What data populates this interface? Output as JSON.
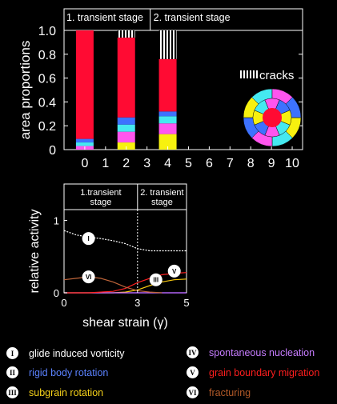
{
  "chart_data": [
    {
      "type": "bar",
      "title": "",
      "stage_labels": [
        "1. transient stage",
        "2. transient stage"
      ],
      "xlabel": "",
      "ylabel": "area proportions",
      "x_ticks": [
        0,
        1,
        2,
        3,
        4,
        5,
        6,
        7,
        8,
        9,
        10
      ],
      "y_ticks": [
        0,
        0.2,
        0.4,
        0.6,
        0.8,
        1.0
      ],
      "y_tick_labels": [
        "0",
        "0.2",
        "0.4",
        "0.6",
        "0.8",
        "1.0"
      ],
      "ylim": [
        0,
        1.0
      ],
      "xlim": [
        -1,
        10.5
      ],
      "stage_boundary_x": 3,
      "categories": [
        0,
        2,
        4
      ],
      "stack_order_bottom_to_top": [
        "yellow",
        "pink",
        "cyan",
        "blue",
        "red",
        "cracks"
      ],
      "stacks": [
        {
          "x": 0,
          "segments": [
            {
              "color": "#f7f10f",
              "value": 0.0
            },
            {
              "color": "#ff55ee",
              "value": 0.03
            },
            {
              "color": "#45e9f0",
              "value": 0.03
            },
            {
              "color": "#3d72ff",
              "value": 0.03
            },
            {
              "color": "#ff0b33",
              "value": 0.91
            },
            {
              "color": "cracks",
              "value": 0.0
            }
          ]
        },
        {
          "x": 2,
          "segments": [
            {
              "color": "#f7f10f",
              "value": 0.06
            },
            {
              "color": "#ff55ee",
              "value": 0.09
            },
            {
              "color": "#45e9f0",
              "value": 0.06
            },
            {
              "color": "#3d72ff",
              "value": 0.06
            },
            {
              "color": "#ff0b33",
              "value": 0.67
            },
            {
              "color": "cracks",
              "value": 0.06
            }
          ]
        },
        {
          "x": 4,
          "segments": [
            {
              "color": "#f7f10f",
              "value": 0.13
            },
            {
              "color": "#ff55ee",
              "value": 0.09
            },
            {
              "color": "#45e9f0",
              "value": 0.06
            },
            {
              "color": "#3d72ff",
              "value": 0.04
            },
            {
              "color": "#ff0b33",
              "value": 0.44
            },
            {
              "color": "cracks",
              "value": 0.24
            }
          ]
        }
      ],
      "cracks_label": "cracks",
      "inset_rings_colors": [
        "#f7f10f",
        "#45e9f0",
        "#ff55ee",
        "#3d72ff"
      ]
    },
    {
      "type": "line",
      "stage_labels": [
        "1.transient\nstage",
        "2. transient\nstage"
      ],
      "xlabel": "shear strain (γ)",
      "ylabel": "relative activity",
      "x_ticks": [
        0,
        3,
        5
      ],
      "y_ticks": [
        0,
        1
      ],
      "xlim": [
        0,
        5
      ],
      "ylim": [
        0,
        1.15
      ],
      "stage_boundary_x": 3,
      "series": [
        {
          "marker": "I",
          "color": "#ffffff",
          "x": [
            0,
            0.5,
            1,
            1.5,
            2,
            2.5,
            3,
            3.5,
            4,
            4.5,
            5
          ],
          "y": [
            0.86,
            0.8,
            0.77,
            0.75,
            0.72,
            0.68,
            0.61,
            0.58,
            0.58,
            0.58,
            0.58
          ]
        },
        {
          "marker": "II",
          "color": "#3d72ff",
          "x": [
            0,
            5
          ],
          "y": [
            0,
            0
          ]
        },
        {
          "marker": "III",
          "color": "#f7c80f",
          "x": [
            0,
            1,
            2,
            2.5,
            3,
            3.5,
            4,
            4.5,
            5
          ],
          "y": [
            0,
            0,
            0,
            0.01,
            0.04,
            0.1,
            0.15,
            0.18,
            0.19
          ]
        },
        {
          "marker": "IV",
          "color": "#cc66ff",
          "x": [
            0,
            5
          ],
          "y": [
            0,
            0
          ]
        },
        {
          "marker": "V",
          "color": "#ff2020",
          "x": [
            0,
            1,
            2,
            2.5,
            3,
            3.5,
            4,
            4.5,
            5
          ],
          "y": [
            0,
            0,
            0.02,
            0.06,
            0.14,
            0.2,
            0.25,
            0.27,
            0.28
          ]
        },
        {
          "marker": "VI",
          "color": "#c0653a",
          "x": [
            0,
            0.5,
            1,
            1.5,
            2,
            2.5,
            3,
            3.5,
            4
          ],
          "y": [
            0.18,
            0.2,
            0.22,
            0.2,
            0.15,
            0.08,
            0.03,
            0.01,
            0.0
          ]
        }
      ],
      "marker_labels": [
        {
          "marker": "I",
          "x": 1.0,
          "y": 0.75
        },
        {
          "marker": "VI",
          "x": 1.0,
          "y": 0.22
        },
        {
          "marker": "III",
          "x": 3.75,
          "y": 0.18
        },
        {
          "marker": "V",
          "x": 4.5,
          "y": 0.3
        }
      ]
    }
  ],
  "legend": [
    {
      "marker": "I",
      "label": "glide induced vorticity",
      "color": "#ffffff"
    },
    {
      "marker": "II",
      "label": "rigid body rotation",
      "color": "#5b82ff"
    },
    {
      "marker": "III",
      "label": "subgrain rotation",
      "color": "#f7d21a"
    },
    {
      "marker": "IV",
      "label": "spontaneous nucleation",
      "color": "#c77dff"
    },
    {
      "marker": "V",
      "label": "grain boundary migration",
      "color": "#ff1e1e"
    },
    {
      "marker": "VI",
      "label": "fracturing",
      "color": "#b35a28"
    }
  ]
}
